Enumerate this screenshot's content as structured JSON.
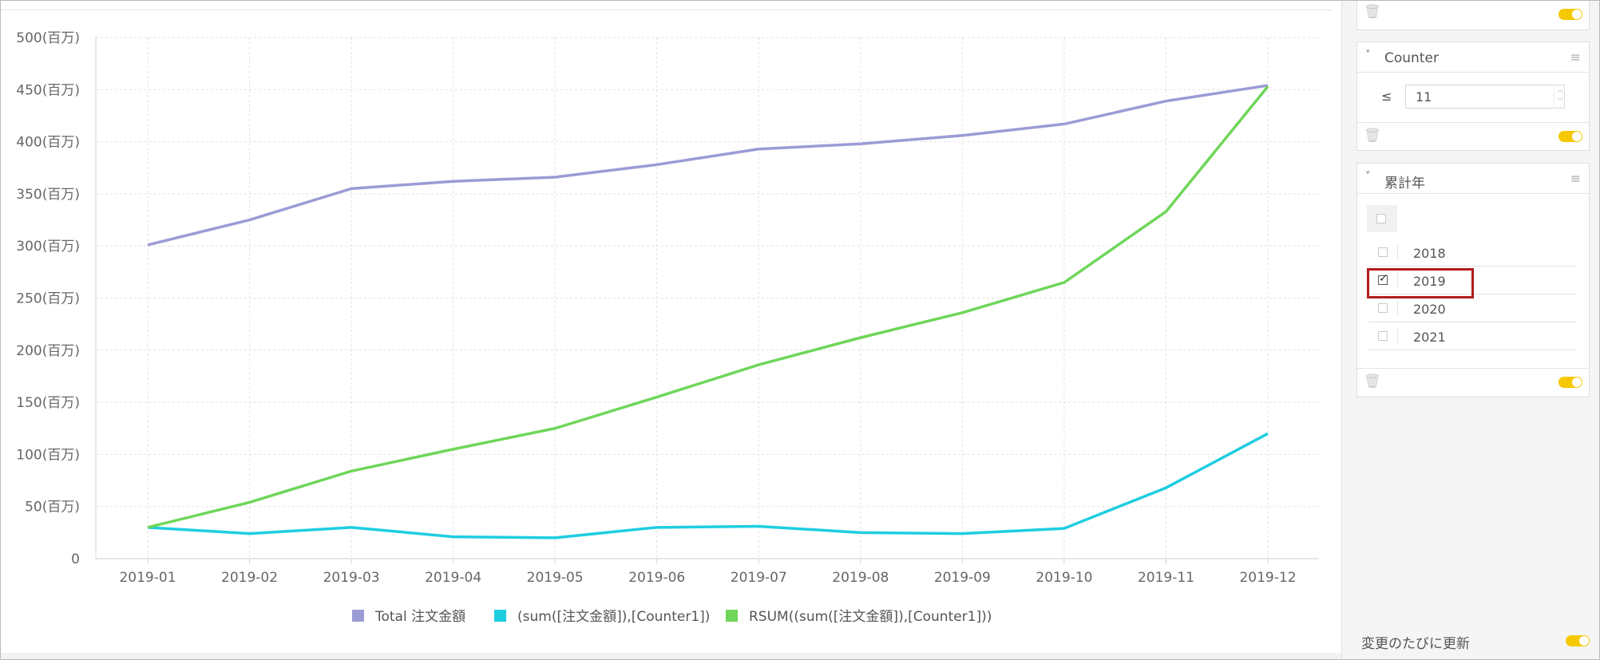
{
  "chart_data": {
    "type": "line",
    "categories": [
      "2019-01",
      "2019-02",
      "2019-03",
      "2019-04",
      "2019-05",
      "2019-06",
      "2019-07",
      "2019-08",
      "2019-09",
      "2019-10",
      "2019-11",
      "2019-12"
    ],
    "series": [
      {
        "name": "Total 注文金額",
        "color": "#9b9bd6",
        "values": [
          301,
          325,
          355,
          362,
          366,
          378,
          393,
          398,
          406,
          417,
          439,
          454
        ]
      },
      {
        "name": "(sum([注文金額]),[Counter1])",
        "color": "#1fcde0",
        "values": [
          30,
          24,
          30,
          21,
          20,
          30,
          31,
          25,
          24,
          29,
          68,
          120
        ]
      },
      {
        "name": "RSUM((sum([注文金額]),[Counter1]))",
        "color": "#6fd65a",
        "values": [
          30,
          54,
          84,
          105,
          125,
          155,
          186,
          212,
          236,
          265,
          333,
          453
        ]
      }
    ],
    "ylim": [
      0,
      500
    ],
    "yticks": [
      0,
      50,
      100,
      150,
      200,
      250,
      300,
      350,
      400,
      450,
      500
    ],
    "ytick_labels": [
      "0",
      "50(百万)",
      "100(百万)",
      "150(百万)",
      "200(百万)",
      "250(百万)",
      "300(百万)",
      "350(百万)",
      "400(百万)",
      "450(百万)",
      "500(百万)"
    ],
    "grid": true,
    "legend_position": "bottom"
  },
  "sidebar": {
    "counter_card": {
      "title": "Counter",
      "operator": "≤",
      "value": "11"
    },
    "year_card": {
      "title": "累計年",
      "items": [
        {
          "label": "2018",
          "checked": false
        },
        {
          "label": "2019",
          "checked": true
        },
        {
          "label": "2020",
          "checked": false
        },
        {
          "label": "2021",
          "checked": false
        }
      ]
    },
    "auto_update_label": "変更のたびに更新"
  },
  "icons": {
    "trash": "trash-icon",
    "chevron": "chevron-down-icon",
    "menu": "hamburger-menu-icon"
  }
}
